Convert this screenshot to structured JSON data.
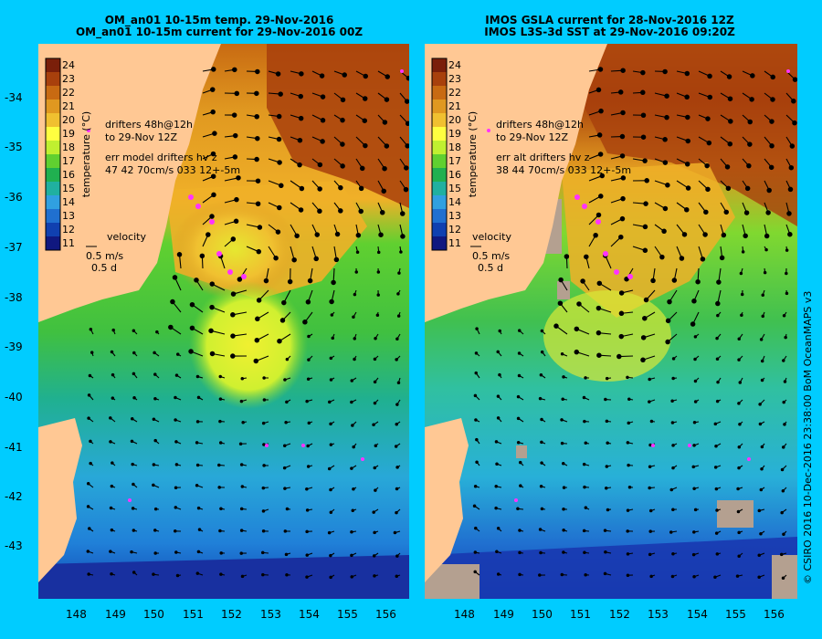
{
  "left_panel": {
    "title_line1": "OM_an01 10-15m temp. 29-Nov-2016",
    "title_line2": "OM_an01 10-15m current for 29-Nov-2016 00Z",
    "drifters_line1": "drifters 48h@12h",
    "drifters_line2": "to 29-Nov 12Z",
    "err_line1": "err model drifters hv z",
    "err_line2": "47 42 70cm/s 033 12+-5m",
    "velocity_label": "velocity",
    "velocity_scale": "0.5 m/s",
    "velocity_time": "0.5 d"
  },
  "right_panel": {
    "title_line1": "IMOS GSLA current for 28-Nov-2016 12Z",
    "title_line2": "IMOS L3S-3d SST at 29-Nov-2016 09:20Z",
    "drifters_line1": "drifters 48h@12h",
    "drifters_line2": "to 29-Nov 12Z",
    "err_line1": "err alt drifters hv z",
    "err_line2": "38 44 70cm/s 033 12+-5m",
    "velocity_label": "velocity",
    "velocity_scale": "0.5 m/s",
    "velocity_time": "0.5 d"
  },
  "colorbar": {
    "label": "temperature (°C)",
    "ticks": [
      "24",
      "23",
      "22",
      "21",
      "20",
      "19",
      "18",
      "17",
      "16",
      "15",
      "14",
      "13",
      "12",
      "11"
    ],
    "colors": [
      "#7a1f0a",
      "#a8400c",
      "#c86a12",
      "#e09820",
      "#f0c030",
      "#ffff40",
      "#c0f030",
      "#60d030",
      "#20b050",
      "#20b0a0",
      "#30a0e0",
      "#2070d0",
      "#1040b0",
      "#101880"
    ]
  },
  "lat_labels": [
    "-34",
    "-35",
    "-36",
    "-37",
    "-38",
    "-39",
    "-40",
    "-41",
    "-42",
    "-43"
  ],
  "lon_labels": [
    "148",
    "149",
    "150",
    "151",
    "152",
    "153",
    "154",
    "155",
    "156"
  ],
  "credit": "© CSIRO 2016  10-Dec-2016 23:38:00 BoM OceanMAPS v3",
  "colors": {
    "background": "#00ccff",
    "land": "#ffc894",
    "drifter": "#ff33ff",
    "no_data": "#b4a090"
  }
}
